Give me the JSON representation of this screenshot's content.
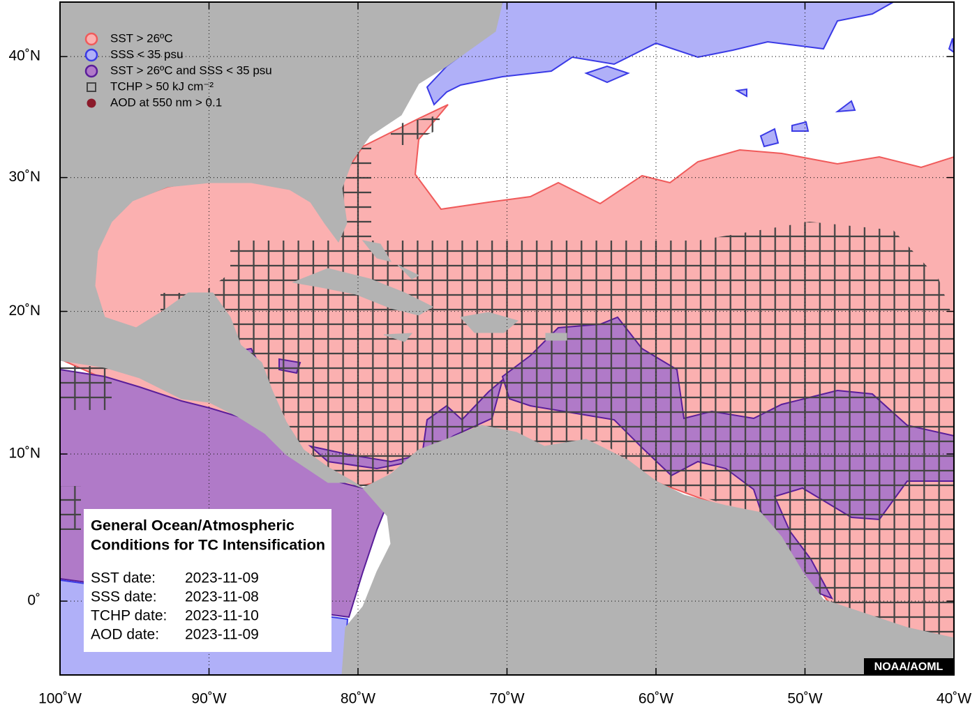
{
  "legend": [
    {
      "label": "SST > 26ºC",
      "marker": "circle",
      "color": "#f05a5a",
      "fill": "#fbb0b0"
    },
    {
      "label": "SSS < 35 psu",
      "marker": "circle",
      "color": "#3a3ae6",
      "fill": "#b0b0f8"
    },
    {
      "label": "SST > 26ºC and SSS < 35 psu",
      "marker": "circle",
      "color": "#5a1e9a",
      "fill": "#b07ac8"
    },
    {
      "label": "TCHP > 50 kJ cm⁻²",
      "marker": "square",
      "color": "#444444",
      "fill": "none"
    },
    {
      "label": "AOD at 550 nm > 0.1",
      "marker": "dot",
      "color": "#8b1a2a",
      "fill": "#8b1a2a"
    }
  ],
  "map": {
    "xlim": [
      -100,
      -40
    ],
    "ylim": [
      -5,
      45
    ],
    "grid": true,
    "lon_ticks": [
      {
        "value": -100,
        "label": "100˚W"
      },
      {
        "value": -90,
        "label": "90˚W"
      },
      {
        "value": -80,
        "label": "80˚W"
      },
      {
        "value": -70,
        "label": "70˚W"
      },
      {
        "value": -60,
        "label": "60˚W"
      },
      {
        "value": -50,
        "label": "50˚W"
      },
      {
        "value": -40,
        "label": "40˚W"
      }
    ],
    "lat_ticks": [
      {
        "value": 0,
        "label": "0˚"
      },
      {
        "value": 10,
        "label": "10˚N"
      },
      {
        "value": 20,
        "label": "20˚N"
      },
      {
        "value": 30,
        "label": "30˚N"
      },
      {
        "value": 40,
        "label": "40˚N"
      }
    ]
  },
  "info_box": {
    "title": [
      "General Ocean/Atmospheric",
      "Conditions for TC Intensification"
    ],
    "dates": [
      [
        "SST date:",
        "2023-11-09"
      ],
      [
        "SSS date:",
        "2023-11-08"
      ],
      [
        "TCHP date:",
        "2023-11-10"
      ],
      [
        "AOD date:",
        "2023-11-09"
      ]
    ]
  },
  "credit": "NOAA/AOML"
}
